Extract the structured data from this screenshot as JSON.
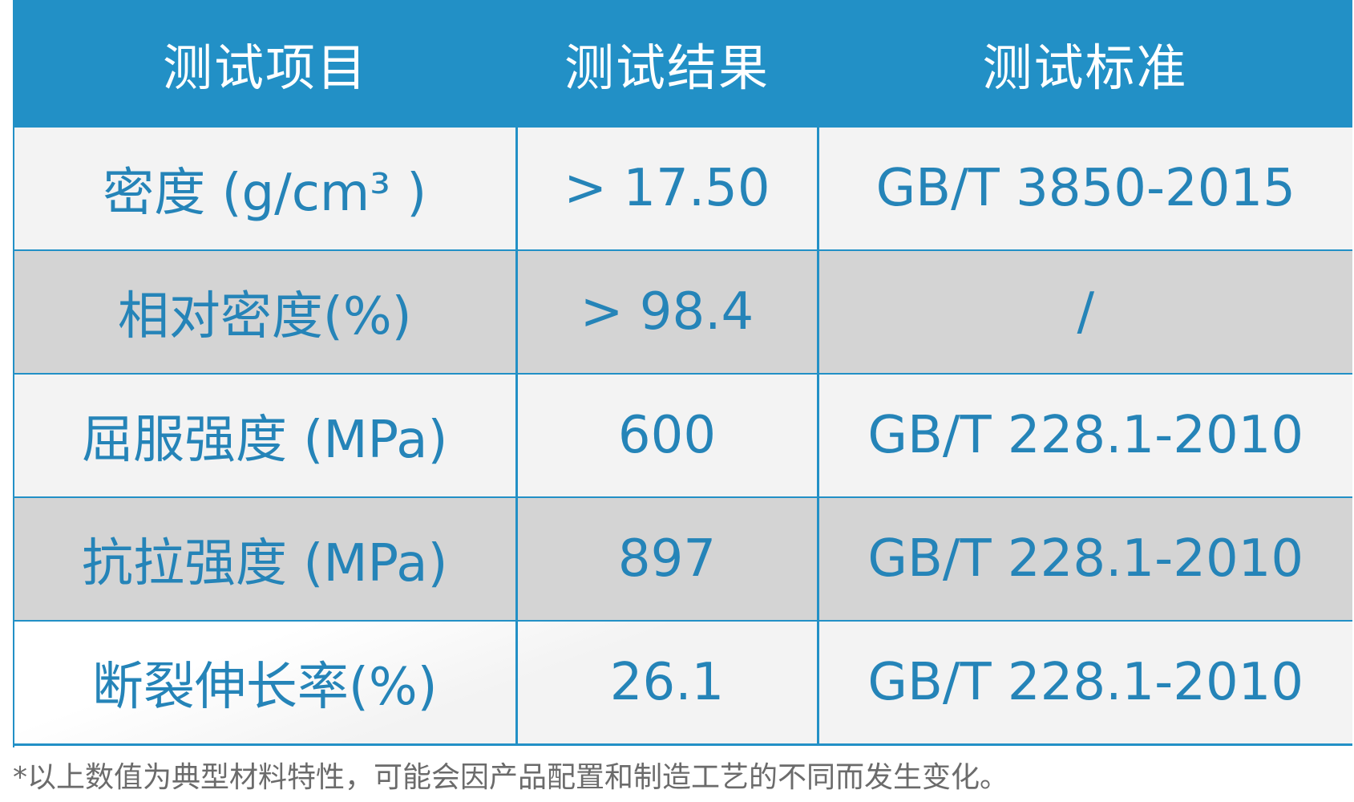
{
  "table": {
    "headers": [
      "测试项目",
      "测试结果",
      "测试标准"
    ],
    "rows": [
      {
        "item": "密度 (g/cm³ )",
        "result": "> 17.50",
        "standard": "GB/T 3850-2015"
      },
      {
        "item": "相对密度(%)",
        "result": "> 98.4",
        "standard": "/"
      },
      {
        "item": "屈服强度 (MPa)",
        "result": "600",
        "standard": "GB/T 228.1-2010"
      },
      {
        "item": "抗拉强度 (MPa)",
        "result": "897",
        "standard": "GB/T 228.1-2010"
      },
      {
        "item": "断裂伸长率(%)",
        "result": "26.1",
        "standard": "GB/T 228.1-2010"
      }
    ]
  },
  "footnote": "*以上数值为典型材料特性，可能会因产品配置和制造工艺的不同而发生变化。",
  "colors": {
    "header_bg": "#2290c6",
    "text_blue": "#2584b8",
    "row_light": "#f3f3f3",
    "row_gray": "#d4d4d4",
    "footnote": "#6b6b6b"
  }
}
